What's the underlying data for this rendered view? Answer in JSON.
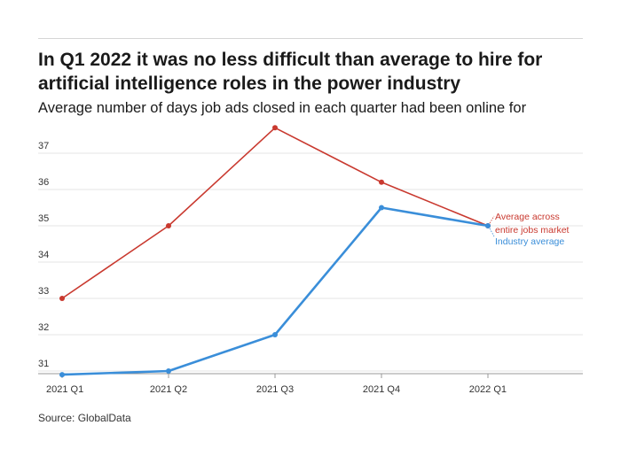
{
  "header": {
    "title": "In Q1 2022 it was no less difficult than average to hire for artificial intelligence roles in the power industry",
    "subtitle": "Average number of days job ads closed in each quarter had been online for"
  },
  "footer": {
    "source": "Source: GlobalData"
  },
  "colors": {
    "market": "#c9392f",
    "industry": "#3a8ed9",
    "grid": "#e6e6e6",
    "axis": "#999999"
  },
  "chart_data": {
    "type": "line",
    "title": "In Q1 2022 it was no less difficult than average to hire for artificial intelligence roles in the power industry",
    "subtitle": "Average number of days job ads closed in each quarter had been online for",
    "xlabel": "",
    "ylabel": "",
    "categories": [
      "2021 Q1",
      "2021 Q2",
      "2021 Q3",
      "2021 Q4",
      "2022 Q1"
    ],
    "ylim": [
      31,
      37
    ],
    "yticks": [
      31,
      32,
      33,
      34,
      35,
      36,
      37
    ],
    "grid": true,
    "legend": "end-of-line labels",
    "series": [
      {
        "name": "Average across entire jobs market",
        "label_lines": [
          "Average across",
          "entire jobs market"
        ],
        "color": "#c9392f",
        "values": [
          33.0,
          35.0,
          37.7,
          36.2,
          35.0
        ]
      },
      {
        "name": "Industry average",
        "label_lines": [
          "Industry average"
        ],
        "color": "#3a8ed9",
        "values": [
          30.9,
          31.0,
          32.0,
          35.5,
          35.0
        ]
      }
    ]
  }
}
